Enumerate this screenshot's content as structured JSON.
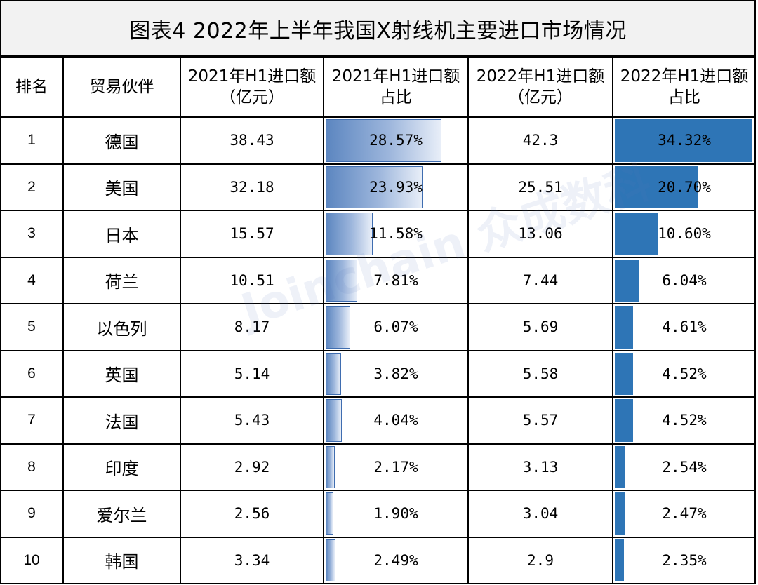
{
  "title": "图表4    2022年上半年我国X射线机主要进口市场情况",
  "watermark": "Joinchain 众成数科",
  "headers": [
    [
      "排名"
    ],
    [
      "贸易伙伴"
    ],
    [
      "2021年H1进口额",
      "（亿元）"
    ],
    [
      "2021年H1进口额",
      "占比"
    ],
    [
      "2022年H1进口额",
      "（亿元）"
    ],
    [
      "2022年H1进口额",
      "占比"
    ]
  ],
  "colors": {
    "bar_2021": "#5c86c0",
    "bar_2022": "#2e75b6",
    "title_bg": "#f2f2f2"
  },
  "chart_data": {
    "type": "table",
    "title": "图表4    2022年上半年我国X射线机主要进口市场情况",
    "columns": [
      "排名",
      "贸易伙伴",
      "2021年H1进口额（亿元）",
      "2021年H1进口额占比",
      "2022年H1进口额（亿元）",
      "2022年H1进口额占比"
    ],
    "rows": [
      {
        "rank": "1",
        "partner": "德国",
        "import_2021": "38.43",
        "share_2021": "28.57%",
        "import_2022": "42.3",
        "share_2022": "34.32%",
        "share_2021_value": 28.57,
        "share_2022_value": 34.32
      },
      {
        "rank": "2",
        "partner": "美国",
        "import_2021": "32.18",
        "share_2021": "23.93%",
        "import_2022": "25.51",
        "share_2022": "20.70%",
        "share_2021_value": 23.93,
        "share_2022_value": 20.7
      },
      {
        "rank": "3",
        "partner": "日本",
        "import_2021": "15.57",
        "share_2021": "11.58%",
        "import_2022": "13.06",
        "share_2022": "10.60%",
        "share_2021_value": 11.58,
        "share_2022_value": 10.6
      },
      {
        "rank": "4",
        "partner": "荷兰",
        "import_2021": "10.51",
        "share_2021": "7.81%",
        "import_2022": "7.44",
        "share_2022": "6.04%",
        "share_2021_value": 7.81,
        "share_2022_value": 6.04
      },
      {
        "rank": "5",
        "partner": "以色列",
        "import_2021": "8.17",
        "share_2021": "6.07%",
        "import_2022": "5.69",
        "share_2022": "4.61%",
        "share_2021_value": 6.07,
        "share_2022_value": 4.61
      },
      {
        "rank": "6",
        "partner": "英国",
        "import_2021": "5.14",
        "share_2021": "3.82%",
        "import_2022": "5.58",
        "share_2022": "4.52%",
        "share_2021_value": 3.82,
        "share_2022_value": 4.52
      },
      {
        "rank": "7",
        "partner": "法国",
        "import_2021": "5.43",
        "share_2021": "4.04%",
        "import_2022": "5.57",
        "share_2022": "4.52%",
        "share_2021_value": 4.04,
        "share_2022_value": 4.52
      },
      {
        "rank": "8",
        "partner": "印度",
        "import_2021": "2.92",
        "share_2021": "2.17%",
        "import_2022": "3.13",
        "share_2022": "2.54%",
        "share_2021_value": 2.17,
        "share_2022_value": 2.54
      },
      {
        "rank": "9",
        "partner": "爱尔兰",
        "import_2021": "2.56",
        "share_2021": "1.90%",
        "import_2022": "3.04",
        "share_2022": "2.47%",
        "share_2021_value": 1.9,
        "share_2022_value": 2.47
      },
      {
        "rank": "10",
        "partner": "韩国",
        "import_2021": "3.34",
        "share_2021": "2.49%",
        "import_2022": "2.9",
        "share_2022": "2.35%",
        "share_2021_value": 2.49,
        "share_2022_value": 2.35
      }
    ]
  }
}
